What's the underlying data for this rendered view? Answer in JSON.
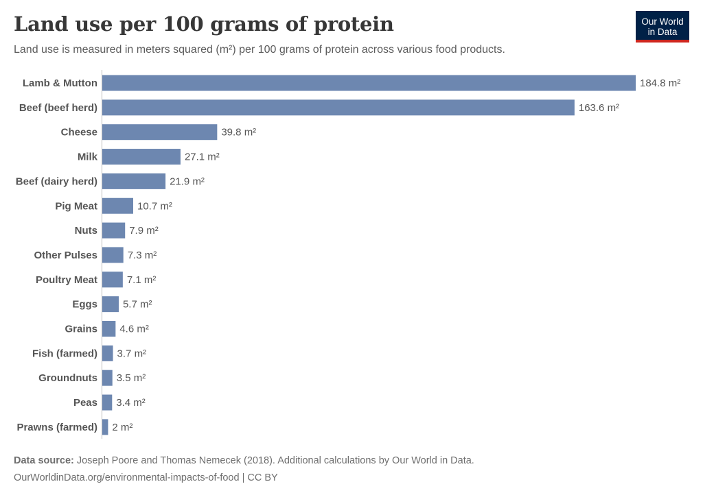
{
  "title": "Land use per 100 grams of protein",
  "subtitle": "Land use is measured in meters squared (m²) per 100 grams of protein across various food products.",
  "logo": {
    "line1": "Our World",
    "line2": "in Data",
    "bg": "#002147",
    "accent": "#ce261e"
  },
  "chart_data": {
    "type": "bar",
    "orientation": "horizontal",
    "title": "Land use per 100 grams of protein",
    "unit": "m²",
    "bar_color": "#6d87b0",
    "categories": [
      "Lamb & Mutton",
      "Beef (beef herd)",
      "Cheese",
      "Milk",
      "Beef (dairy herd)",
      "Pig Meat",
      "Nuts",
      "Other Pulses",
      "Poultry Meat",
      "Eggs",
      "Grains",
      "Fish (farmed)",
      "Groundnuts",
      "Peas",
      "Prawns (farmed)"
    ],
    "values": [
      184.8,
      163.6,
      39.8,
      27.1,
      21.9,
      10.7,
      7.9,
      7.3,
      7.1,
      5.7,
      4.6,
      3.7,
      3.5,
      3.4,
      2
    ],
    "data_labels": [
      "184.8 m²",
      "163.6 m²",
      "39.8 m²",
      "27.1 m²",
      "21.9 m²",
      "10.7 m²",
      "7.9 m²",
      "7.3 m²",
      "7.1 m²",
      "5.7 m²",
      "4.6 m²",
      "3.7 m²",
      "3.5 m²",
      "3.4 m²",
      "2 m²"
    ],
    "grid": false
  },
  "footer": {
    "source_label": "Data source:",
    "source_text": " Joseph Poore and Thomas Nemecek (2018). Additional calculations by Our World in Data.",
    "link": "OurWorldinData.org/environmental-impacts-of-food | CC BY"
  }
}
